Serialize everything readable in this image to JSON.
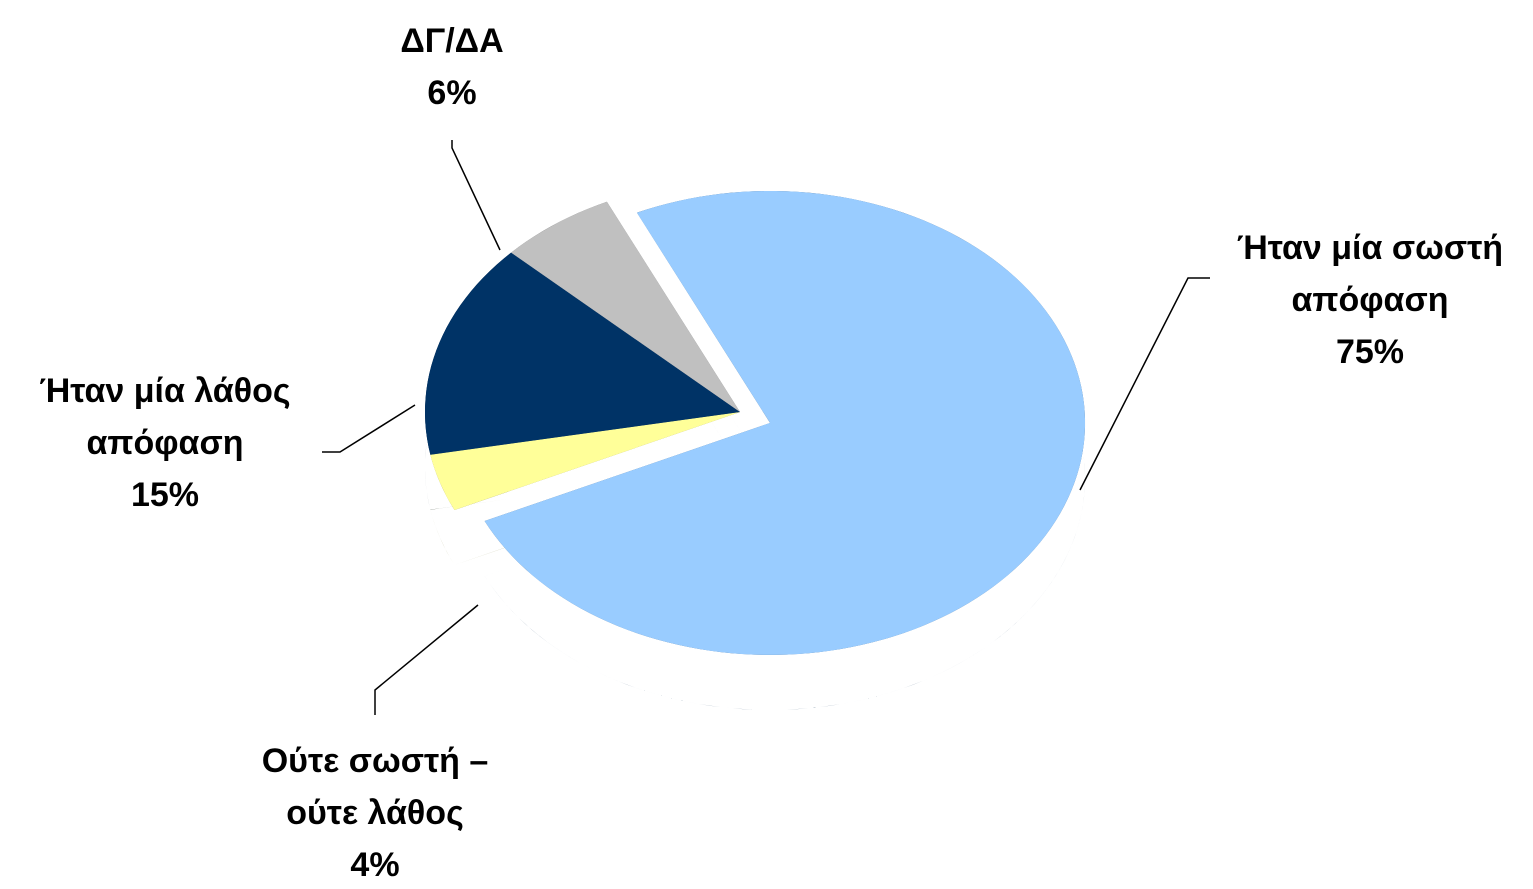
{
  "chart_data": {
    "type": "pie",
    "categories": [
      "Ήταν μία σωστή απόφαση",
      "Ούτε σωστή – ούτε λάθος",
      "Ήταν μία λάθος απόφαση",
      "ΔΓ/ΔΑ"
    ],
    "values": [
      75,
      4,
      15,
      6
    ],
    "value_labels": [
      "75%",
      "4%",
      "15%",
      "6%"
    ],
    "colors": [
      "#99ccff",
      "#ffff99",
      "#003366",
      "#c0c0c0"
    ],
    "side_colors": [
      "#4a6580",
      "#8a8a4a",
      "#001a33",
      "#666666"
    ],
    "style": "3d-exploded"
  }
}
